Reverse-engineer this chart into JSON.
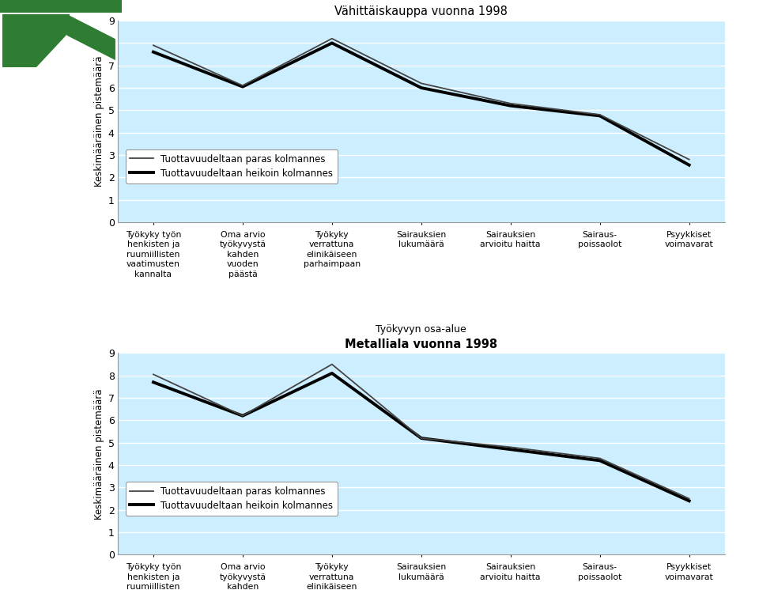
{
  "chart1": {
    "title": "Vähittäiskauppa vuonna 1998",
    "ylabel": "Keskimääräinen pistemäärä",
    "xlabel": "Työkyvyn osa-alue",
    "ylim": [
      0,
      9
    ],
    "yticks": [
      0,
      1,
      2,
      3,
      4,
      5,
      6,
      7,
      8,
      9
    ],
    "series1_label": "Tuottavuudeltaan paras kolmannes",
    "series2_label": "Tuottavuudeltaan heikoin kolmannes",
    "series1_values": [
      7.9,
      6.1,
      8.2,
      6.2,
      5.3,
      4.8,
      2.8
    ],
    "series2_values": [
      7.6,
      6.05,
      8.0,
      6.0,
      5.2,
      4.75,
      2.55
    ],
    "xtick_labels": [
      "Työkyky työn\nhenkisten ja\nruumiillisten\nvaatimusten\nkannalta",
      "Oma arvio\ntyökyvystä\nkahden\nvuoden\npäästä",
      "Työkyky\nverrattuna\nelinikäiseen\nparhaimpaan",
      "Sairauksien\nlukumäärä",
      "Sairauksien\narvioitu haitta",
      "Sairaus-\npoissaolot",
      "Psyykkiset\nvoimavarat"
    ]
  },
  "chart2": {
    "title": "Metalliala vuonna 1998",
    "ylabel": "Keskimääräinen pistemäärä",
    "xlabel": "Työkyvyn osa-alue",
    "ylim": [
      0,
      9
    ],
    "yticks": [
      0,
      1,
      2,
      3,
      4,
      5,
      6,
      7,
      8,
      9
    ],
    "series1_label": "Tuottavuudeltaan paras kolmannes",
    "series2_label": "Tuottavuudeltaan heikoin kolmannes",
    "series1_values": [
      8.05,
      6.2,
      8.5,
      5.2,
      4.8,
      4.3,
      2.5
    ],
    "series2_values": [
      7.7,
      6.2,
      8.1,
      5.2,
      4.7,
      4.2,
      2.4
    ],
    "xtick_labels": [
      "Työkyky työn\nhenkisten ja\nruumiillisten\nvaatimusten\nkannalta",
      "Oma arvio\ntyökyvystä\nkahden\nvuoden\npäästä",
      "Työkyky\nverrattuna\nelinikäiseen\nparhaimpaan",
      "Sairauksien\nlukumäärä",
      "Sairauksien\narvioitu haitta",
      "Sairaus-\npoissaolot",
      "Psyykkiset\nvoimavarat"
    ]
  },
  "bg_color": "#cceeff",
  "line_color_thin": "#444444",
  "line_color_thick": "#000000",
  "fig_bg_color": "#ffffff",
  "grid_color": "#ffffff"
}
